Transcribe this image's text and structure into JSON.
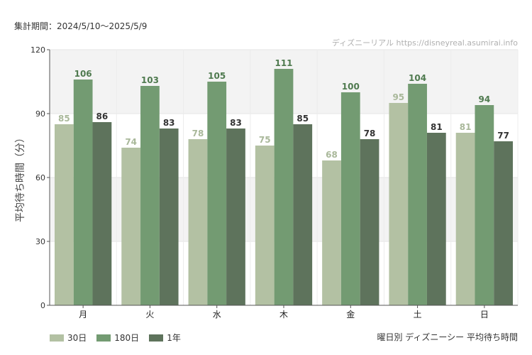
{
  "header": {
    "period_label": "集計期間：2024/5/10〜2025/5/9",
    "source": "ディズニーリアル https://disneyreal.asumirai.info"
  },
  "chart_title": "曜日別 ディズニーシー 平均待ち時間",
  "chart_data": {
    "type": "bar",
    "categories": [
      "月",
      "火",
      "水",
      "木",
      "金",
      "土",
      "日"
    ],
    "series": [
      {
        "name": "30日",
        "values": [
          85,
          74,
          78,
          75,
          68,
          95,
          81
        ],
        "color": "#b3c1a3",
        "label_color": "#a9b89a"
      },
      {
        "name": "180日",
        "values": [
          106,
          103,
          105,
          111,
          100,
          104,
          94
        ],
        "color": "#739b72",
        "label_color": "#4f7a4f"
      },
      {
        "name": "1年",
        "values": [
          86,
          83,
          83,
          85,
          78,
          81,
          77
        ],
        "color": "#5e735c",
        "label_color": "#333333"
      }
    ],
    "ylabel": "平均待ち時間（分）",
    "ylim": [
      0,
      120
    ],
    "yticks": [
      0,
      30,
      60,
      90,
      120
    ],
    "grid": true,
    "legend_position": "bottom-left"
  }
}
